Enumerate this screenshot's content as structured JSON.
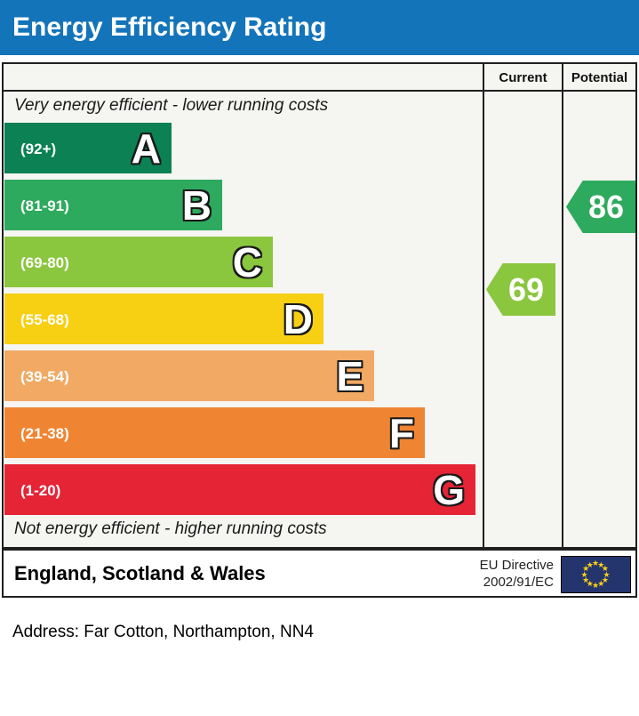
{
  "header": {
    "title": "Energy Efficiency Rating",
    "bg_color": "#1374ba"
  },
  "table": {
    "columns": {
      "current": "Current",
      "potential": "Potential"
    },
    "top_note": "Very energy efficient - lower running costs",
    "bottom_note": "Not energy efficient - higher running costs"
  },
  "chart_data": {
    "type": "bar",
    "title": "Energy Efficiency Rating",
    "scale": {
      "min": 1,
      "max": 100
    },
    "bands": [
      {
        "letter": "A",
        "range": "(92+)",
        "min": 92,
        "max": 100,
        "color": "#0b8154"
      },
      {
        "letter": "B",
        "range": "(81-91)",
        "min": 81,
        "max": 91,
        "color": "#2eaa5e"
      },
      {
        "letter": "C",
        "range": "(69-80)",
        "min": 69,
        "max": 80,
        "color": "#8bc63f"
      },
      {
        "letter": "D",
        "range": "(55-68)",
        "min": 55,
        "max": 68,
        "color": "#f7cf13"
      },
      {
        "letter": "E",
        "range": "(39-54)",
        "min": 39,
        "max": 54,
        "color": "#f1a964"
      },
      {
        "letter": "F",
        "range": "(21-38)",
        "min": 21,
        "max": 38,
        "color": "#ef8532"
      },
      {
        "letter": "G",
        "range": "(1-20)",
        "min": 1,
        "max": 20,
        "color": "#e52436"
      }
    ],
    "current": {
      "value": 69,
      "band": "C",
      "color": "#8bc63f",
      "column": "Current"
    },
    "potential": {
      "value": 86,
      "band": "B",
      "color": "#2eaa5e",
      "column": "Potential"
    },
    "top_note": "Very energy efficient - lower running costs",
    "bottom_note": "Not energy efficient - higher running costs",
    "legend_position": "none",
    "grid": false
  },
  "footer": {
    "region": "England, Scotland & Wales",
    "directive_line1": "EU Directive",
    "directive_line2": "2002/91/EC",
    "flag": "eu-flag"
  },
  "address_line": "Address: Far Cotton, Northampton, NN4"
}
